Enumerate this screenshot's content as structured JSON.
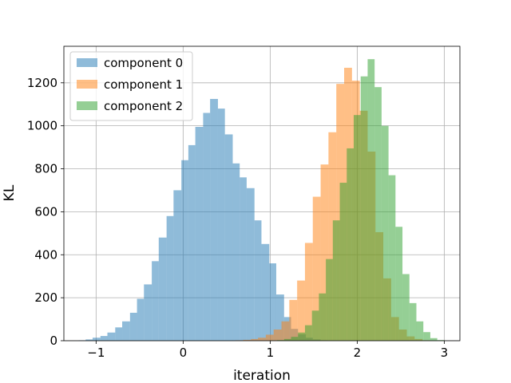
{
  "chart_data": {
    "type": "histogram",
    "title": "",
    "xlabel": "iteration",
    "ylabel": "KL",
    "xlim": [
      -1.37,
      3.18
    ],
    "ylim": [
      0,
      1370
    ],
    "xticks": [
      -1,
      0,
      1,
      2,
      3
    ],
    "xtick_labels": [
      "−1",
      "0",
      "1",
      "2",
      "3"
    ],
    "yticks": [
      0,
      200,
      400,
      600,
      800,
      1000,
      1200
    ],
    "grid": true,
    "legend_position": "upper-left",
    "alpha": 0.5,
    "series": [
      {
        "name": "component 0",
        "color": "#1f77b4",
        "bins": [
          [
            -1.2,
            -1.12,
            2
          ],
          [
            -1.12,
            -1.04,
            6
          ],
          [
            -1.04,
            -0.95,
            14
          ],
          [
            -0.95,
            -0.87,
            22
          ],
          [
            -0.87,
            -0.78,
            38
          ],
          [
            -0.78,
            -0.7,
            62
          ],
          [
            -0.7,
            -0.61,
            90
          ],
          [
            -0.61,
            -0.53,
            130
          ],
          [
            -0.53,
            -0.45,
            195
          ],
          [
            -0.45,
            -0.36,
            262
          ],
          [
            -0.36,
            -0.28,
            370
          ],
          [
            -0.28,
            -0.19,
            480
          ],
          [
            -0.19,
            -0.11,
            580
          ],
          [
            -0.11,
            -0.02,
            700
          ],
          [
            -0.02,
            0.06,
            840
          ],
          [
            0.06,
            0.14,
            910
          ],
          [
            0.14,
            0.23,
            995
          ],
          [
            0.23,
            0.31,
            1060
          ],
          [
            0.31,
            0.4,
            1125
          ],
          [
            0.4,
            0.48,
            1080
          ],
          [
            0.48,
            0.57,
            960
          ],
          [
            0.57,
            0.65,
            825
          ],
          [
            0.65,
            0.73,
            760
          ],
          [
            0.73,
            0.82,
            710
          ],
          [
            0.82,
            0.9,
            560
          ],
          [
            0.9,
            0.99,
            450
          ],
          [
            0.99,
            1.07,
            360
          ],
          [
            1.07,
            1.16,
            215
          ],
          [
            1.16,
            1.24,
            110
          ],
          [
            1.24,
            1.32,
            55
          ],
          [
            1.32,
            1.41,
            30
          ],
          [
            1.41,
            1.49,
            14
          ],
          [
            1.49,
            1.58,
            6
          ],
          [
            1.58,
            1.66,
            2
          ]
        ]
      },
      {
        "name": "component 1",
        "color": "#ff7f0e",
        "bins": [
          [
            0.6,
            0.69,
            2
          ],
          [
            0.69,
            0.78,
            4
          ],
          [
            0.78,
            0.86,
            8
          ],
          [
            0.86,
            0.95,
            14
          ],
          [
            0.95,
            1.04,
            28
          ],
          [
            1.04,
            1.13,
            52
          ],
          [
            1.13,
            1.22,
            90
          ],
          [
            1.22,
            1.31,
            190
          ],
          [
            1.31,
            1.4,
            280
          ],
          [
            1.4,
            1.49,
            455
          ],
          [
            1.49,
            1.58,
            670
          ],
          [
            1.58,
            1.67,
            820
          ],
          [
            1.67,
            1.76,
            970
          ],
          [
            1.76,
            1.85,
            1195
          ],
          [
            1.85,
            1.94,
            1270
          ],
          [
            1.94,
            2.03,
            1210
          ],
          [
            2.03,
            2.12,
            1070
          ],
          [
            2.12,
            2.21,
            880
          ],
          [
            2.21,
            2.3,
            505
          ],
          [
            2.3,
            2.39,
            290
          ],
          [
            2.39,
            2.48,
            110
          ],
          [
            2.48,
            2.57,
            52
          ],
          [
            2.57,
            2.66,
            20
          ],
          [
            2.66,
            2.75,
            8
          ],
          [
            2.75,
            2.84,
            2
          ]
        ]
      },
      {
        "name": "component 2",
        "color": "#2ca02c",
        "bins": [
          [
            1.0,
            1.08,
            1
          ],
          [
            1.08,
            1.16,
            3
          ],
          [
            1.16,
            1.24,
            8
          ],
          [
            1.24,
            1.32,
            18
          ],
          [
            1.32,
            1.4,
            38
          ],
          [
            1.4,
            1.48,
            72
          ],
          [
            1.48,
            1.56,
            140
          ],
          [
            1.56,
            1.64,
            220
          ],
          [
            1.64,
            1.72,
            380
          ],
          [
            1.72,
            1.8,
            560
          ],
          [
            1.8,
            1.88,
            735
          ],
          [
            1.88,
            1.96,
            895
          ],
          [
            1.96,
            2.04,
            1050
          ],
          [
            2.04,
            2.12,
            1230
          ],
          [
            2.12,
            2.2,
            1310
          ],
          [
            2.2,
            2.28,
            1180
          ],
          [
            2.28,
            2.36,
            1000
          ],
          [
            2.36,
            2.44,
            770
          ],
          [
            2.44,
            2.52,
            530
          ],
          [
            2.52,
            2.6,
            310
          ],
          [
            2.6,
            2.68,
            175
          ],
          [
            2.68,
            2.76,
            90
          ],
          [
            2.76,
            2.84,
            40
          ],
          [
            2.84,
            2.92,
            12
          ],
          [
            2.92,
            3.0,
            3
          ]
        ]
      }
    ]
  }
}
